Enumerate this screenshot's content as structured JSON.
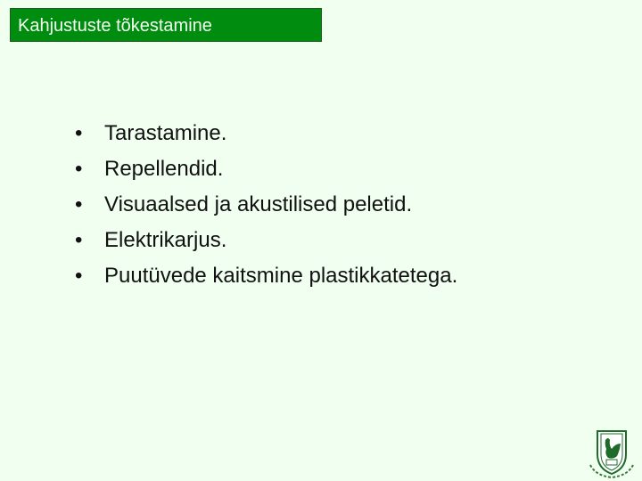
{
  "title": "Kahjustuste tõkestamine",
  "bullets": [
    "Tarastamine.",
    "Repellendid.",
    "Visuaalsed ja akustilised peletid.",
    "Elektrikarjus.",
    "Puutüvede kaitsmine plastikkatetega."
  ],
  "bullet_glyph": "•",
  "logo": {
    "icon": "capercaillie-shield-emblem",
    "colors": [
      "#1f6b2a",
      "#ffffff"
    ]
  }
}
